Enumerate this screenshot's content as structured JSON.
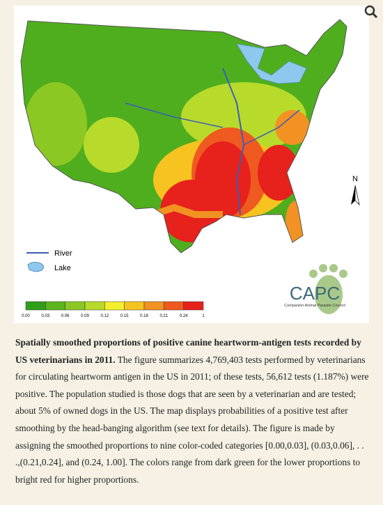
{
  "map": {
    "legend": {
      "labels": [
        "0.00",
        "0.03",
        "0.06",
        "0.09",
        "0.12",
        "0.15",
        "0.18",
        "0.21",
        "0.24",
        "1"
      ],
      "colors": [
        "#2f9f1b",
        "#5cb51f",
        "#8cc824",
        "#b8da2b",
        "#f3ef2c",
        "#f6c321",
        "#f29223",
        "#ee5a20",
        "#e7211c"
      ]
    },
    "key": {
      "river": "River",
      "lake": "Lake"
    },
    "north": "N",
    "logo": {
      "name": "CAPC",
      "tagline": "Companion Animal Parasite Council"
    }
  },
  "caption": {
    "bold": "Spatially smoothed proportions of positive canine heartworm-antigen tests recorded by US veterinarians in 2011.",
    "text": "The figure summarizes 4,769,403 tests performed by veterinarians for circulating heartworm antigen in the US in 2011; of these tests, 56,612 tests (1.187%) were positive. The population studied is those dogs that are seen by a veterinarian and are tested; about 5% of owned dogs in the US. The map displays probabilities of a positive test after smoothing by the head-banging algorithm (see text for details). The figure is made by assigning the smoothed proportions to nine color-coded categories [0.00,0.03], (0.03,0.06], . . .,(0.21,0.24], and (0.24, 1.00]. The colors range from dark green for the lower proportions to bright red for higher proportions."
  }
}
